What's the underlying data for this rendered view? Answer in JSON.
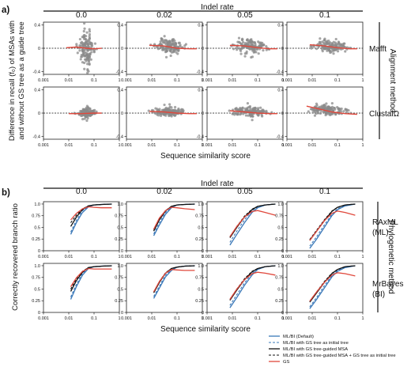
{
  "figure": {
    "panel_a_label": "a)",
    "panel_b_label": "b)"
  },
  "chart_data": [
    {
      "id": "panel-a",
      "type": "scatter",
      "title": "Indel rate",
      "column_labels": [
        "0.0",
        "0.02",
        "0.05",
        "0.1"
      ],
      "row_labels": [
        "Mafft",
        "ClustalΩ"
      ],
      "side_label": "Alignment method",
      "xlabel": "Sequence similarity score",
      "ylabel_line1": "Difference in recall (f₀) of MSAs with",
      "ylabel_line2": "and without GS tree as a guide tree",
      "xscale": "log",
      "xlim": [
        0.001,
        1
      ],
      "xticks": [
        0.001,
        0.01,
        0.1,
        1
      ],
      "xtick_labels": [
        "0.001",
        "0.01",
        "0.1",
        "1"
      ],
      "ylim": [
        -0.45,
        0.45
      ],
      "yticks": [
        -0.4,
        0,
        0.4
      ],
      "ytick_labels": [
        "-0.4",
        "0",
        "0.4"
      ],
      "zero_line": "dashed",
      "colors": {
        "points": "#8a8a8a",
        "trend": "#e0483c"
      },
      "panels": [
        {
          "row": 0,
          "col": 0,
          "cloud": {
            "x": [
              0.02,
              0.1
            ],
            "center": [
              0.05,
              0
            ],
            "spread": 0.18
          },
          "trend": [
            [
              0.008,
              0.01
            ],
            [
              0.02,
              0.02
            ],
            [
              0.05,
              0.0
            ],
            [
              0.1,
              -0.01
            ],
            [
              0.2,
              0.0
            ]
          ]
        },
        {
          "row": 0,
          "col": 1,
          "cloud": {
            "x": [
              0.01,
              0.2
            ],
            "center": [
              0.05,
              0.03
            ],
            "spread": 0.08
          },
          "trend": [
            [
              0.008,
              0.05
            ],
            [
              0.03,
              0.04
            ],
            [
              0.1,
              0.0
            ],
            [
              0.3,
              -0.01
            ],
            [
              0.6,
              -0.01
            ]
          ]
        },
        {
          "row": 0,
          "col": 2,
          "cloud": {
            "x": [
              0.01,
              0.3
            ],
            "center": [
              0.05,
              0.03
            ],
            "spread": 0.07
          },
          "trend": [
            [
              0.008,
              0.05
            ],
            [
              0.03,
              0.04
            ],
            [
              0.1,
              0.01
            ],
            [
              0.3,
              -0.01
            ],
            [
              0.6,
              -0.01
            ]
          ]
        },
        {
          "row": 0,
          "col": 3,
          "cloud": {
            "x": [
              0.01,
              0.4
            ],
            "center": [
              0.05,
              0.04
            ],
            "spread": 0.06
          },
          "trend": [
            [
              0.008,
              0.06
            ],
            [
              0.03,
              0.04
            ],
            [
              0.1,
              0.01
            ],
            [
              0.3,
              -0.01
            ],
            [
              0.6,
              -0.01
            ]
          ]
        },
        {
          "row": 1,
          "col": 0,
          "cloud": {
            "x": [
              0.02,
              0.1
            ],
            "center": [
              0.05,
              0
            ],
            "spread": 0.05
          },
          "trend": [
            [
              0.01,
              -0.01
            ],
            [
              0.03,
              -0.01
            ],
            [
              0.1,
              0.0
            ],
            [
              0.2,
              0.0
            ]
          ]
        },
        {
          "row": 1,
          "col": 1,
          "cloud": {
            "x": [
              0.01,
              0.2
            ],
            "center": [
              0.05,
              0.02
            ],
            "spread": 0.05
          },
          "trend": [
            [
              0.008,
              0.03
            ],
            [
              0.03,
              0.02
            ],
            [
              0.1,
              0.0
            ],
            [
              0.3,
              -0.01
            ],
            [
              0.6,
              -0.01
            ]
          ]
        },
        {
          "row": 1,
          "col": 2,
          "cloud": {
            "x": [
              0.01,
              0.3
            ],
            "center": [
              0.05,
              0.02
            ],
            "spread": 0.05
          },
          "trend": [
            [
              0.008,
              0.04
            ],
            [
              0.03,
              0.02
            ],
            [
              0.1,
              0.0
            ],
            [
              0.3,
              -0.01
            ],
            [
              0.6,
              -0.01
            ]
          ]
        },
        {
          "row": 1,
          "col": 3,
          "cloud": {
            "x": [
              0.008,
              0.4
            ],
            "center": [
              0.04,
              0.05
            ],
            "spread": 0.05
          },
          "trend": [
            [
              0.006,
              0.12
            ],
            [
              0.02,
              0.07
            ],
            [
              0.06,
              0.02
            ],
            [
              0.2,
              -0.01
            ],
            [
              0.6,
              -0.02
            ]
          ]
        }
      ]
    },
    {
      "id": "panel-b",
      "type": "line",
      "title": "Indel rate",
      "column_labels": [
        "0.0",
        "0.02",
        "0.05",
        "0.1"
      ],
      "row_labels": [
        [
          "RAxML",
          "(ML)"
        ],
        [
          "MrBayes",
          "(BI)"
        ]
      ],
      "side_label": "Phylogenetic method",
      "xlabel": "Sequence similarity score",
      "ylabel": "Correctly recovered branch ratio",
      "xscale": "log",
      "xlim": [
        0.001,
        1
      ],
      "xticks": [
        0.001,
        0.01,
        0.1,
        1
      ],
      "xtick_labels": [
        "0.001",
        "0.01",
        "0.1",
        "1"
      ],
      "ylim": [
        0,
        1.05
      ],
      "yticks": [
        0,
        0.25,
        0.5,
        0.75,
        1
      ],
      "ytick_labels": [
        "0",
        "0.25",
        "0.5",
        "0.75",
        "1.0"
      ],
      "legend_position": "bottom-right",
      "series_styles": [
        {
          "name": "ML/BI (Default)",
          "color": "#3a78b8",
          "dash": "none",
          "width": 1.3
        },
        {
          "name": "ML/BI with GS tree as initial tree",
          "color": "#3a78b8",
          "dash": "3,2",
          "width": 1.1
        },
        {
          "name": "ML/BI with GS tree-guided MSA",
          "color": "#111111",
          "dash": "none",
          "width": 1.3
        },
        {
          "name": "ML/BI with GS tree-guided MSA + GS tree as initial tree",
          "color": "#111111",
          "dash": "3,2",
          "width": 1.1
        },
        {
          "name": "GS",
          "color": "#e0483c",
          "dash": "none",
          "width": 1.3
        }
      ],
      "panels": [
        {
          "row": 0,
          "col": 0,
          "x": [
            0.012,
            0.02,
            0.035,
            0.06,
            0.1,
            0.2,
            0.5
          ],
          "series": [
            [
              0.35,
              0.6,
              0.82,
              0.94,
              0.98,
              0.99,
              1.0
            ],
            [
              0.4,
              0.65,
              0.86,
              0.95,
              0.98,
              0.99,
              1.0
            ],
            [
              0.52,
              0.72,
              0.88,
              0.96,
              0.98,
              0.99,
              1.0
            ],
            [
              0.6,
              0.76,
              0.9,
              0.96,
              0.98,
              0.99,
              1.0
            ],
            [
              0.66,
              0.8,
              0.9,
              0.94,
              0.93,
              0.92,
              0.92
            ]
          ]
        },
        {
          "row": 0,
          "col": 1,
          "x": [
            0.012,
            0.02,
            0.035,
            0.06,
            0.1,
            0.2,
            0.5
          ],
          "series": [
            [
              0.32,
              0.55,
              0.78,
              0.92,
              0.98,
              0.99,
              1.0
            ],
            [
              0.36,
              0.6,
              0.82,
              0.93,
              0.98,
              0.99,
              1.0
            ],
            [
              0.42,
              0.66,
              0.85,
              0.95,
              0.98,
              0.99,
              1.0
            ],
            [
              0.45,
              0.68,
              0.86,
              0.95,
              0.98,
              0.99,
              1.0
            ],
            [
              0.46,
              0.7,
              0.86,
              0.93,
              0.92,
              0.9,
              0.88
            ]
          ]
        },
        {
          "row": 0,
          "col": 2,
          "x": [
            0.008,
            0.015,
            0.03,
            0.06,
            0.1,
            0.2,
            0.5
          ],
          "series": [
            [
              0.12,
              0.35,
              0.6,
              0.82,
              0.92,
              0.98,
              1.0
            ],
            [
              0.18,
              0.42,
              0.66,
              0.86,
              0.94,
              0.98,
              1.0
            ],
            [
              0.28,
              0.5,
              0.72,
              0.88,
              0.95,
              0.98,
              1.0
            ],
            [
              0.3,
              0.52,
              0.74,
              0.89,
              0.95,
              0.98,
              1.0
            ],
            [
              0.3,
              0.52,
              0.72,
              0.84,
              0.86,
              0.82,
              0.76
            ]
          ]
        },
        {
          "row": 0,
          "col": 3,
          "x": [
            0.008,
            0.015,
            0.03,
            0.06,
            0.1,
            0.2,
            0.5
          ],
          "series": [
            [
              0.05,
              0.25,
              0.5,
              0.75,
              0.88,
              0.96,
              1.0
            ],
            [
              0.1,
              0.3,
              0.55,
              0.78,
              0.9,
              0.97,
              1.0
            ],
            [
              0.22,
              0.42,
              0.64,
              0.84,
              0.93,
              0.98,
              1.0
            ],
            [
              0.24,
              0.44,
              0.66,
              0.85,
              0.93,
              0.98,
              1.0
            ],
            [
              0.22,
              0.42,
              0.64,
              0.8,
              0.85,
              0.82,
              0.76
            ]
          ]
        },
        {
          "row": 1,
          "col": 0,
          "x": [
            0.012,
            0.02,
            0.035,
            0.06,
            0.1,
            0.2,
            0.5
          ],
          "series": [
            [
              0.28,
              0.55,
              0.8,
              0.94,
              0.98,
              0.99,
              1.0
            ],
            [
              0.33,
              0.6,
              0.84,
              0.95,
              0.98,
              0.99,
              1.0
            ],
            [
              0.45,
              0.68,
              0.86,
              0.96,
              0.98,
              0.99,
              1.0
            ],
            [
              0.5,
              0.72,
              0.88,
              0.96,
              0.98,
              0.99,
              1.0
            ],
            [
              0.55,
              0.74,
              0.88,
              0.94,
              0.93,
              0.93,
              0.93
            ]
          ]
        },
        {
          "row": 1,
          "col": 1,
          "x": [
            0.012,
            0.02,
            0.035,
            0.06,
            0.1,
            0.2,
            0.5
          ],
          "series": [
            [
              0.3,
              0.52,
              0.76,
              0.9,
              0.97,
              0.99,
              1.0
            ],
            [
              0.34,
              0.56,
              0.8,
              0.92,
              0.97,
              0.99,
              1.0
            ],
            [
              0.42,
              0.64,
              0.84,
              0.94,
              0.97,
              0.99,
              1.0
            ],
            [
              0.44,
              0.66,
              0.85,
              0.94,
              0.97,
              0.99,
              1.0
            ],
            [
              0.44,
              0.66,
              0.84,
              0.92,
              0.91,
              0.9,
              0.9
            ]
          ]
        },
        {
          "row": 1,
          "col": 2,
          "x": [
            0.008,
            0.015,
            0.03,
            0.06,
            0.1,
            0.2,
            0.5
          ],
          "series": [
            [
              0.1,
              0.32,
              0.58,
              0.8,
              0.92,
              0.98,
              1.0
            ],
            [
              0.15,
              0.38,
              0.63,
              0.84,
              0.93,
              0.98,
              1.0
            ],
            [
              0.26,
              0.48,
              0.7,
              0.87,
              0.94,
              0.98,
              1.0
            ],
            [
              0.28,
              0.5,
              0.72,
              0.88,
              0.94,
              0.98,
              1.0
            ],
            [
              0.28,
              0.5,
              0.7,
              0.83,
              0.86,
              0.84,
              0.8
            ]
          ]
        },
        {
          "row": 1,
          "col": 3,
          "x": [
            0.008,
            0.015,
            0.03,
            0.06,
            0.1,
            0.2,
            0.5
          ],
          "series": [
            [
              0.08,
              0.28,
              0.52,
              0.76,
              0.88,
              0.96,
              1.0
            ],
            [
              0.12,
              0.32,
              0.57,
              0.79,
              0.9,
              0.97,
              1.0
            ],
            [
              0.22,
              0.42,
              0.64,
              0.83,
              0.92,
              0.98,
              1.0
            ],
            [
              0.24,
              0.44,
              0.66,
              0.84,
              0.92,
              0.98,
              1.0
            ],
            [
              0.24,
              0.44,
              0.64,
              0.8,
              0.85,
              0.83,
              0.78
            ]
          ]
        }
      ]
    }
  ]
}
